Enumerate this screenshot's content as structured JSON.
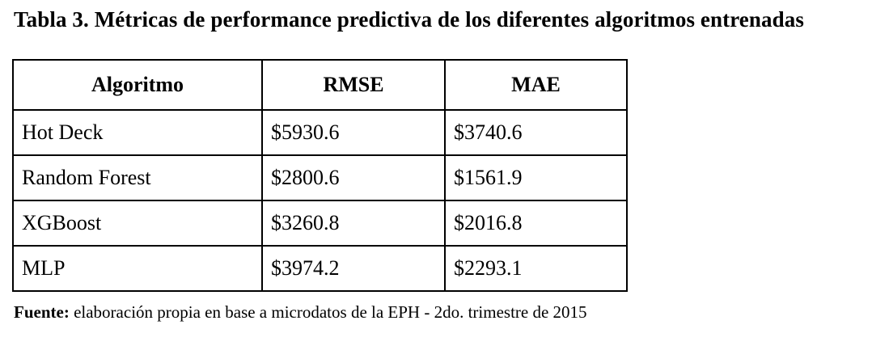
{
  "caption": "Tabla 3. Métricas de performance predictiva de los diferentes algoritmos entrenadas",
  "table": {
    "headers": [
      "Algoritmo",
      "RMSE",
      "MAE"
    ],
    "rows": [
      [
        "Hot Deck",
        "$5930.6",
        "$3740.6"
      ],
      [
        "Random Forest",
        "$2800.6",
        "$1561.9"
      ],
      [
        "XGBoost",
        "$3260.8",
        "$2016.8"
      ],
      [
        "MLP",
        "$3974.2",
        "$2293.1"
      ]
    ]
  },
  "source": {
    "label": "Fuente:",
    "text": " elaboración propia en base a microdatos de la EPH - 2do. trimestre de 2015"
  }
}
